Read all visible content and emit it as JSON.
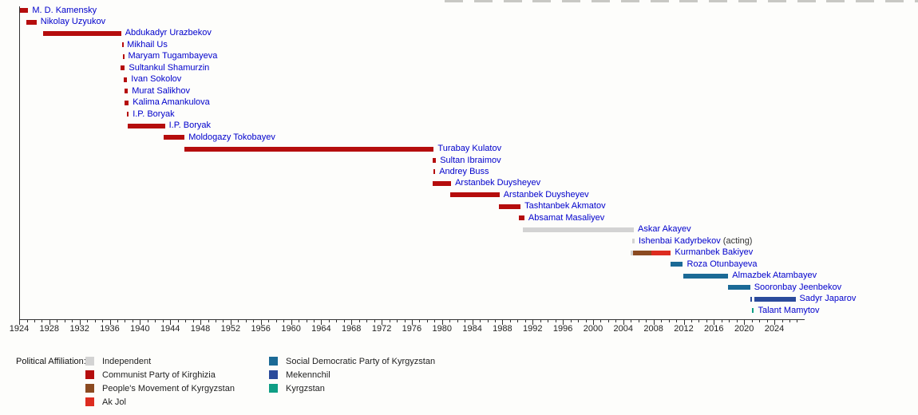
{
  "chart_data": {
    "type": "timeline",
    "title": "",
    "x_axis": {
      "min": 1924,
      "max": 2028,
      "major_tick_step": 4,
      "minor_tick_step": 1,
      "tick_labels": [
        "1924",
        "1928",
        "1932",
        "1936",
        "1940",
        "1944",
        "1948",
        "1952",
        "1956",
        "1960",
        "1964",
        "1968",
        "1972",
        "1976",
        "1980",
        "1984",
        "1988",
        "1992",
        "1996",
        "2000",
        "2004",
        "2008",
        "2012",
        "2016",
        "2020",
        "2024"
      ]
    },
    "parties": {
      "independent": {
        "label": "Independent",
        "color": "#d3d3d3"
      },
      "communist": {
        "label": "Communist Party of Kirghizia",
        "color": "#b50d0d"
      },
      "pmk": {
        "label": "People's Movement of Kyrgyzstan",
        "color": "#8b4a21"
      },
      "akjol": {
        "label": "Ak Jol",
        "color": "#dd2c20"
      },
      "sdpk": {
        "label": "Social Democratic Party of Kyrgyzstan",
        "color": "#1b6a96"
      },
      "mekenchil": {
        "label": "Mekennchil",
        "color": "#2b4b9b"
      },
      "kyrgyzstan": {
        "label": "Kyrgzstan",
        "color": "#0f9e85"
      }
    },
    "legend": {
      "title": "Political Affiliation:",
      "columns": [
        [
          "independent",
          "communist",
          "pmk",
          "akjol"
        ],
        [
          "sdpk",
          "mekenchil",
          "kyrgyzstan"
        ]
      ]
    },
    "people": [
      {
        "name": "M. D. Kamensky",
        "suffix": "",
        "segments": [
          {
            "party": "communist",
            "start": 1924.0,
            "end": 1925.2
          }
        ]
      },
      {
        "name": "Nikolay Uzyukov",
        "suffix": "",
        "segments": [
          {
            "party": "communist",
            "start": 1924.9,
            "end": 1926.3
          }
        ]
      },
      {
        "name": "Abdukadyr Urazbekov",
        "suffix": "",
        "segments": [
          {
            "party": "communist",
            "start": 1927.2,
            "end": 1937.5
          }
        ]
      },
      {
        "name": "Mikhail Us",
        "suffix": "",
        "segments": [
          {
            "party": "communist",
            "start": 1937.6,
            "end": 1937.75
          }
        ]
      },
      {
        "name": "Maryam Tugambayeva",
        "suffix": "",
        "segments": [
          {
            "party": "communist",
            "start": 1937.7,
            "end": 1937.9
          }
        ]
      },
      {
        "name": "Sultankul Shamurzin",
        "suffix": "",
        "segments": [
          {
            "party": "communist",
            "start": 1937.4,
            "end": 1938.0
          }
        ]
      },
      {
        "name": "Ivan Sokolov",
        "suffix": "",
        "segments": [
          {
            "party": "communist",
            "start": 1937.8,
            "end": 1938.3
          }
        ]
      },
      {
        "name": "Murat Salikhov",
        "suffix": "",
        "segments": [
          {
            "party": "communist",
            "start": 1938.0,
            "end": 1938.4
          }
        ]
      },
      {
        "name": "Kalima Amankulova",
        "suffix": "",
        "segments": [
          {
            "party": "communist",
            "start": 1937.9,
            "end": 1938.5
          }
        ]
      },
      {
        "name": "I.P. Boryak",
        "suffix": "",
        "segments": [
          {
            "party": "communist",
            "start": 1938.3,
            "end": 1938.5
          }
        ]
      },
      {
        "name": "I.P. Boryak",
        "suffix": "",
        "segments": [
          {
            "party": "communist",
            "start": 1938.4,
            "end": 1943.3
          }
        ]
      },
      {
        "name": "Moldogazy Tokobayev",
        "suffix": "",
        "segments": [
          {
            "party": "communist",
            "start": 1943.1,
            "end": 1945.9
          }
        ]
      },
      {
        "name": "Turabay Kulatov",
        "suffix": "",
        "segments": [
          {
            "party": "communist",
            "start": 1945.9,
            "end": 1978.9
          }
        ]
      },
      {
        "name": "Sultan Ibraimov",
        "suffix": "",
        "segments": [
          {
            "party": "communist",
            "start": 1978.7,
            "end": 1979.2
          }
        ]
      },
      {
        "name": "Andrey Buss",
        "suffix": "",
        "segments": [
          {
            "party": "communist",
            "start": 1978.9,
            "end": 1979.1
          }
        ]
      },
      {
        "name": "Arstanbek Duysheyev",
        "suffix": "",
        "segments": [
          {
            "party": "communist",
            "start": 1978.8,
            "end": 1981.2
          }
        ]
      },
      {
        "name": "Arstanbek Duysheyev",
        "suffix": "",
        "segments": [
          {
            "party": "communist",
            "start": 1981.1,
            "end": 1987.6
          }
        ]
      },
      {
        "name": "Tashtanbek Akmatov",
        "suffix": "",
        "segments": [
          {
            "party": "communist",
            "start": 1987.5,
            "end": 1990.4
          }
        ]
      },
      {
        "name": "Absamat Masaliyev",
        "suffix": "",
        "segments": [
          {
            "party": "communist",
            "start": 1990.2,
            "end": 1990.9
          }
        ]
      },
      {
        "name": "Askar Akayev",
        "suffix": "",
        "segments": [
          {
            "party": "independent",
            "start": 1990.7,
            "end": 2005.4
          }
        ]
      },
      {
        "name": "Ishenbai Kadyrbekov",
        "suffix": " (acting)",
        "segments": [
          {
            "party": "independent",
            "start": 2005.2,
            "end": 2005.5
          }
        ]
      },
      {
        "name": "Kurmanbek Bakiyev",
        "suffix": "",
        "segments": [
          {
            "party": "independent",
            "start": 2005.0,
            "end": 2005.3
          },
          {
            "party": "pmk",
            "start": 2005.3,
            "end": 2007.7
          },
          {
            "party": "akjol",
            "start": 2007.7,
            "end": 2010.3
          }
        ]
      },
      {
        "name": "Roza Otunbayeva",
        "suffix": "",
        "segments": [
          {
            "party": "sdpk",
            "start": 2010.3,
            "end": 2011.9
          }
        ]
      },
      {
        "name": "Almazbek Atambayev",
        "suffix": "",
        "segments": [
          {
            "party": "sdpk",
            "start": 2011.9,
            "end": 2017.9
          }
        ]
      },
      {
        "name": "Sooronbay Jeenbekov",
        "suffix": "",
        "segments": [
          {
            "party": "sdpk",
            "start": 2017.9,
            "end": 2020.8
          }
        ]
      },
      {
        "name": "Sadyr Japarov",
        "suffix": "",
        "segments": [
          {
            "party": "mekenchil",
            "start": 2020.8,
            "end": 2021.05
          },
          {
            "party": "mekenchil",
            "start": 2021.3,
            "end": 2026.8
          }
        ]
      },
      {
        "name": "Talant Mamytov",
        "suffix": "",
        "segments": [
          {
            "party": "kyrgyzstan",
            "start": 2021.05,
            "end": 2021.3
          }
        ]
      }
    ]
  }
}
